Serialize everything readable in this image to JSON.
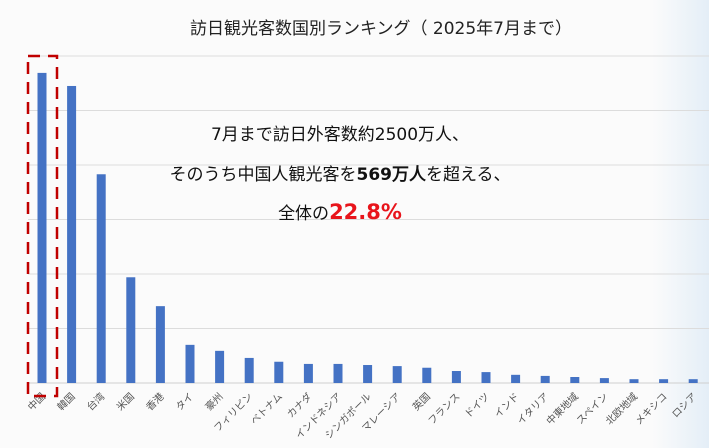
{
  "chart_data": {
    "type": "bar",
    "title": "訪日観光客数国別ランキング（ 2025年7月まで）",
    "categories": [
      "中国",
      "韓国",
      "台湾",
      "米国",
      "香港",
      "タイ",
      "豪州",
      "フィリピン",
      "ベトナム",
      "カナダ",
      "インドネシア",
      "シンガポール",
      "マレーシア",
      "英国",
      "フランス",
      "ドイツ",
      "インド",
      "イタリア",
      "中東地域",
      "スペイン",
      "北欧地域",
      "メキシコ",
      "ロシア"
    ],
    "values": [
      569,
      545,
      383,
      194,
      141,
      70,
      59,
      46,
      39,
      35,
      35,
      33,
      31,
      28,
      22,
      20,
      15,
      13,
      11,
      9,
      7,
      7,
      7
    ],
    "ylim": [
      0,
      600
    ],
    "grid": true,
    "bar_color": "#4472c4",
    "highlight": {
      "category": "中国",
      "color": "#c00000",
      "style": "dashed-box"
    },
    "annotation": {
      "line1": "7月まで訪日外客数約2500万人、",
      "line2_pre": "そのうち中国人観光客を",
      "line2_bold": "569万人",
      "line2_post": "を超える、",
      "line3_pre": "全体の",
      "line3_red": "22.8%"
    }
  }
}
